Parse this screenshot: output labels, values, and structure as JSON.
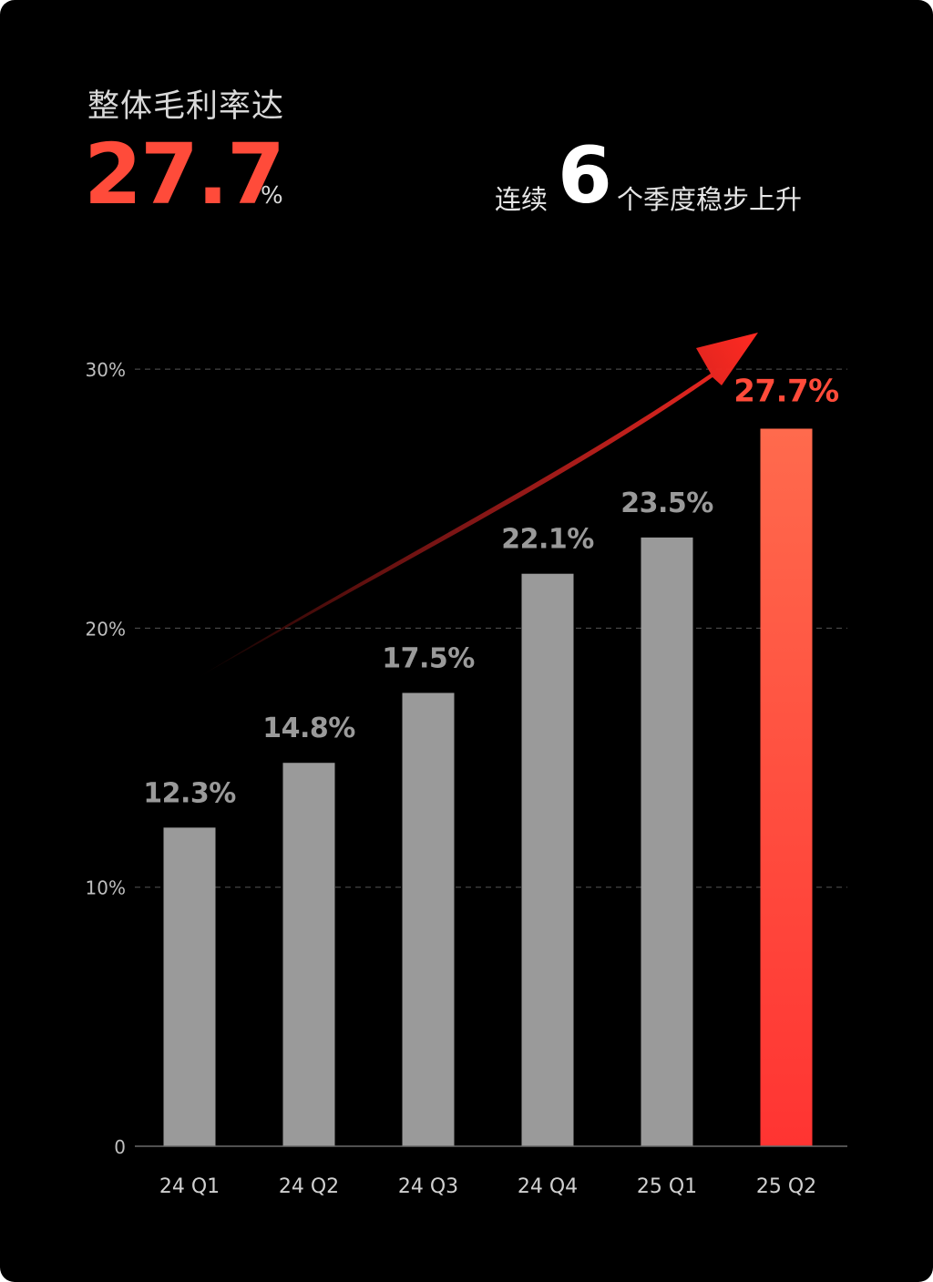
{
  "headline": {
    "label": "整体毛利率达",
    "value": "27.7",
    "unit": "%"
  },
  "streak": {
    "prefix": "连续",
    "number": "6",
    "suffix": "个季度稳步上升"
  },
  "colors": {
    "background": "#000000",
    "bar_normal": "#9a9a9a",
    "bar_highlight_top": "#ff6a4d",
    "bar_highlight_bottom": "#ff3432",
    "highlight_text": "#ff4b3a",
    "label_text": "#9a9a9a",
    "axis_text": "#bfbfbf",
    "gridline": "#555555"
  },
  "chart_data": {
    "type": "bar",
    "categories": [
      "24 Q1",
      "24 Q2",
      "24 Q3",
      "24 Q4",
      "25 Q1",
      "25 Q2"
    ],
    "values": [
      12.3,
      14.8,
      17.5,
      22.1,
      23.5,
      27.7
    ],
    "data_labels": [
      "12.3%",
      "14.8%",
      "17.5%",
      "22.1%",
      "23.5%",
      "27.7%"
    ],
    "highlight_index": 5,
    "yticks": [
      0,
      10,
      20,
      30
    ],
    "ytick_labels": [
      "0",
      "10%",
      "20%",
      "30%"
    ],
    "ylim": [
      0,
      30
    ],
    "grid": true,
    "trend_arrow": true
  }
}
